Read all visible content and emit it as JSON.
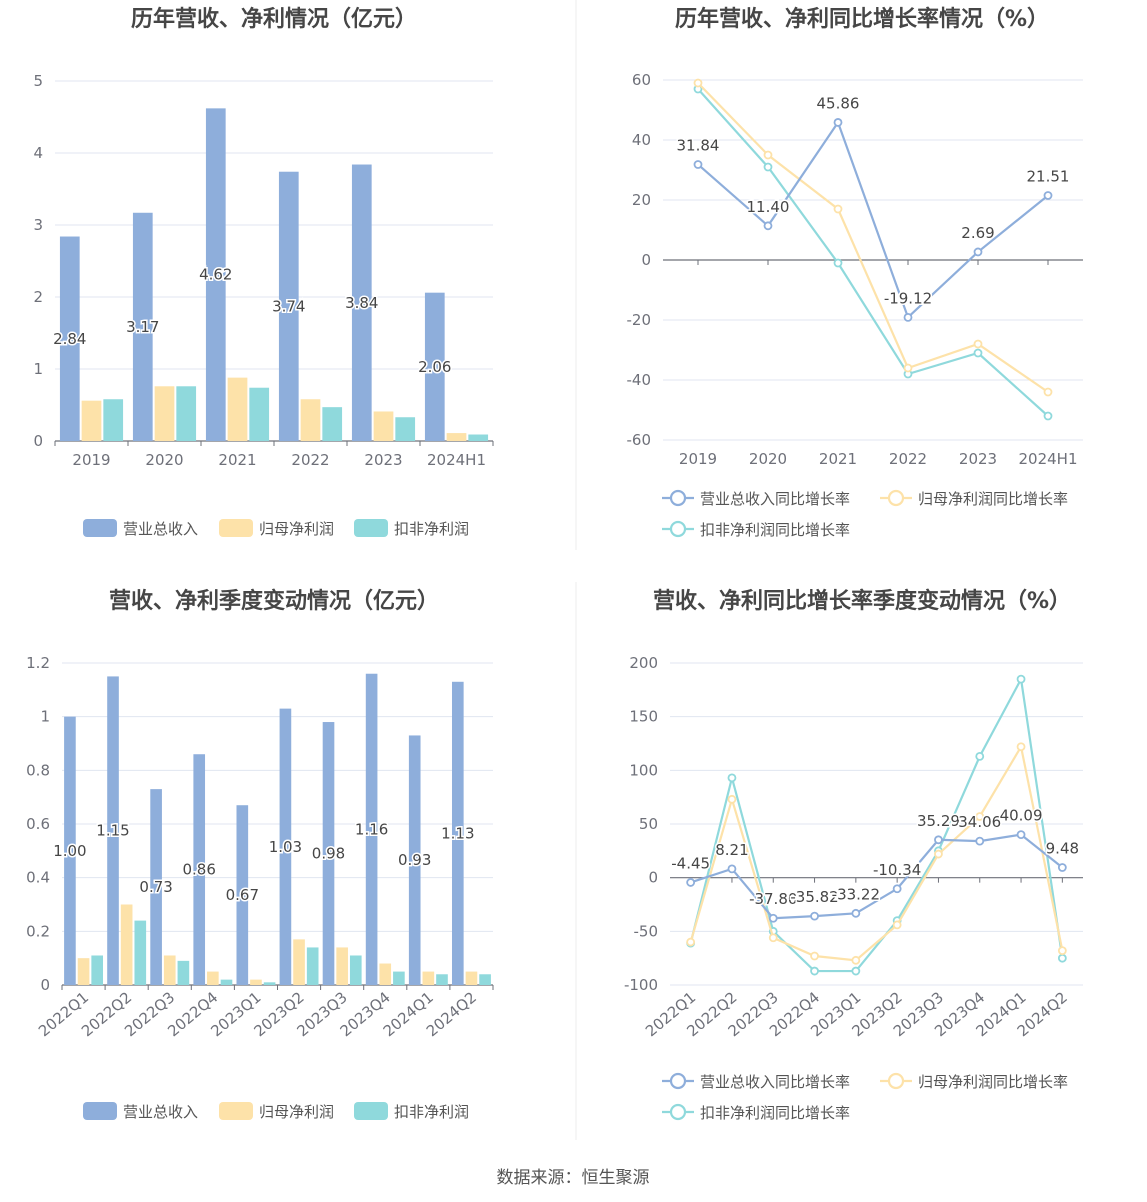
{
  "source": "数据来源：恒生聚源",
  "colors": {
    "revenue": "#8eaedb",
    "net": "#fde2a9",
    "deducted": "#8fd9dc",
    "axis": "#6e7079",
    "grid": "#e0e6f1",
    "label": "#464646"
  },
  "legend": {
    "bars": [
      "营业总收入",
      "归母净利润",
      "扣非净利润"
    ],
    "lines": [
      "营业总收入同比增长率",
      "归母净利润同比增长率",
      "扣非净利润同比增长率"
    ]
  },
  "chart_data": [
    {
      "id": "annual-bar",
      "type": "bar",
      "title": "历年营收、净利情况（亿元）",
      "categories": [
        "2019",
        "2020",
        "2021",
        "2022",
        "2023",
        "2024H1"
      ],
      "series": [
        {
          "name": "营业总收入",
          "values": [
            2.84,
            3.17,
            4.62,
            3.74,
            3.84,
            2.06
          ],
          "labels": [
            "2.84",
            "3.17",
            "4.62",
            "3.74",
            "3.84",
            "2.06"
          ]
        },
        {
          "name": "归母净利润",
          "values": [
            0.56,
            0.76,
            0.88,
            0.58,
            0.41,
            0.11
          ]
        },
        {
          "name": "扣非净利润",
          "values": [
            0.58,
            0.76,
            0.74,
            0.47,
            0.33,
            0.09
          ]
        }
      ],
      "ylim": [
        0,
        5
      ],
      "yticks": [
        "0",
        "1",
        "2",
        "3",
        "4",
        "5"
      ],
      "legend_position": "bottom",
      "grid": true
    },
    {
      "id": "annual-line",
      "type": "line",
      "title": "历年营收、净利同比增长率情况（%）",
      "categories": [
        "2019",
        "2020",
        "2021",
        "2022",
        "2023",
        "2024H1"
      ],
      "series": [
        {
          "name": "营业总收入同比增长率",
          "values": [
            31.84,
            11.4,
            45.86,
            -19.12,
            2.69,
            21.51
          ],
          "labels": [
            "31.84",
            "11.40",
            "45.86",
            "-19.12",
            "2.69",
            "21.51"
          ]
        },
        {
          "name": "归母净利润同比增长率",
          "values": [
            59,
            35,
            17,
            -36,
            -28,
            -44
          ]
        },
        {
          "name": "扣非净利润同比增长率",
          "values": [
            57,
            31,
            -1,
            -38,
            -31,
            -52
          ]
        }
      ],
      "ylim": [
        -60,
        60
      ],
      "yticks": [
        "-60",
        "-40",
        "-20",
        "0",
        "20",
        "40",
        "60"
      ],
      "legend_position": "bottom",
      "grid": true
    },
    {
      "id": "quarter-bar",
      "type": "bar",
      "title": "营收、净利季度变动情况（亿元）",
      "categories": [
        "2022Q1",
        "2022Q2",
        "2022Q3",
        "2022Q4",
        "2023Q1",
        "2023Q2",
        "2023Q3",
        "2023Q4",
        "2024Q1",
        "2024Q2"
      ],
      "series": [
        {
          "name": "营业总收入",
          "values": [
            1.0,
            1.15,
            0.73,
            0.86,
            0.67,
            1.03,
            0.98,
            1.16,
            0.93,
            1.13
          ],
          "labels": [
            "1.00",
            "1.15",
            "0.73",
            "0.86",
            "0.67",
            "1.03",
            "0.98",
            "1.16",
            "0.93",
            "1.13"
          ]
        },
        {
          "name": "归母净利润",
          "values": [
            0.1,
            0.3,
            0.11,
            0.05,
            0.02,
            0.17,
            0.14,
            0.08,
            0.05,
            0.05
          ]
        },
        {
          "name": "扣非净利润",
          "values": [
            0.11,
            0.24,
            0.09,
            0.02,
            0.01,
            0.14,
            0.11,
            0.05,
            0.04,
            0.04
          ]
        }
      ],
      "ylim": [
        0,
        1.2
      ],
      "yticks": [
        "0",
        "0.2",
        "0.4",
        "0.6",
        "0.8",
        "1",
        "1.2"
      ],
      "legend_position": "bottom",
      "grid": true
    },
    {
      "id": "quarter-line",
      "type": "line",
      "title": "营收、净利同比增长率季度变动情况（%）",
      "categories": [
        "2022Q1",
        "2022Q2",
        "2022Q3",
        "2022Q4",
        "2023Q1",
        "2023Q2",
        "2023Q3",
        "2023Q4",
        "2024Q1",
        "2024Q2"
      ],
      "series": [
        {
          "name": "营业总收入同比增长率",
          "values": [
            -4.45,
            8.21,
            -37.8,
            -35.82,
            -33.22,
            -10.34,
            35.29,
            34.06,
            40.09,
            9.48
          ],
          "labels": [
            "-4.45",
            "8.21",
            "-37.80",
            "-35.82",
            "-33.22",
            "-10.34",
            "35.29",
            "34.06",
            "40.09",
            "9.48"
          ]
        },
        {
          "name": "归母净利润同比增长率",
          "values": [
            -60,
            73,
            -56,
            -73,
            -77,
            -44,
            22,
            57,
            122,
            -68
          ]
        },
        {
          "name": "扣非净利润同比增长率",
          "values": [
            -61,
            93,
            -50,
            -87,
            -87,
            -40,
            25,
            113,
            185,
            -75
          ]
        }
      ],
      "ylim": [
        -100,
        200
      ],
      "yticks": [
        "-100",
        "-50",
        "0",
        "50",
        "100",
        "150",
        "200"
      ],
      "legend_position": "bottom",
      "grid": true
    }
  ]
}
